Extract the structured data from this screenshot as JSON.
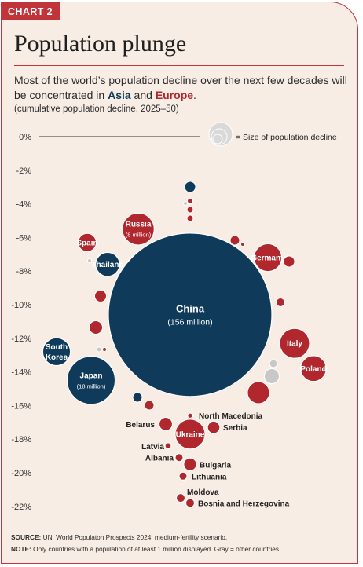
{
  "tag": "CHART 2",
  "title": "Population plunge",
  "subtitle": {
    "part1": "Most of the world’s population decline over the next few decades will be concentrated in ",
    "asia": "Asia",
    "and": " and ",
    "europe": "Europe",
    "end": "."
  },
  "unit_note": "(cumulative population decline, 2025–50)",
  "legend": {
    "label": "= Size of population decline"
  },
  "colors": {
    "asia": "#0f3a5a",
    "europe": "#b0282e",
    "other": "#c8c8c8",
    "accent": "#c0343a"
  },
  "chart_data": {
    "type": "scatter",
    "ylim": [
      -22.5,
      0
    ],
    "y_ticks": [
      {
        "value": 0,
        "label": "0%"
      },
      {
        "value": -2,
        "label": "-2%"
      },
      {
        "value": -4,
        "label": "-4%"
      },
      {
        "value": -6,
        "label": "-6%"
      },
      {
        "value": -8,
        "label": "-8%"
      },
      {
        "value": -10,
        "label": "-10%"
      },
      {
        "value": -12,
        "label": "-12%"
      },
      {
        "value": -14,
        "label": "-14%"
      },
      {
        "value": -16,
        "label": "-16%"
      },
      {
        "value": -18,
        "label": "-18%"
      },
      {
        "value": -20,
        "label": "-20%"
      },
      {
        "value": -22,
        "label": "-22%"
      }
    ],
    "points": [
      {
        "name": "China",
        "sub": "(156 million)",
        "region": "asia",
        "y": -10.6,
        "size": 156
      },
      {
        "name": "Japan",
        "sub": "(18 million)",
        "region": "asia",
        "y": -14.5,
        "size": 18
      },
      {
        "name": "Russia",
        "sub": "(8 million)",
        "region": "europe",
        "y": -5.5,
        "size": 8
      },
      {
        "name": "Thailand",
        "region": "asia",
        "y": -7.6,
        "size": 4.5
      },
      {
        "name": "South Korea",
        "region": "asia",
        "y": -12.8,
        "size": 6
      },
      {
        "name": "Spain",
        "region": "europe",
        "y": -6.3,
        "size": 2.6
      },
      {
        "name": "Germany",
        "region": "europe",
        "y": -7.2,
        "size": 6
      },
      {
        "name": "Italy",
        "region": "europe",
        "y": -12.3,
        "size": 7
      },
      {
        "name": "Poland",
        "region": "europe",
        "y": -13.8,
        "size": 5.2
      },
      {
        "name": "Ukraine",
        "region": "europe",
        "y": -17.7,
        "size": 7
      },
      {
        "name": "North Macedonia",
        "region": "europe",
        "y": -16.6,
        "size": 0.2
      },
      {
        "name": "Belarus",
        "region": "europe",
        "y": -17.1,
        "size": 1.4
      },
      {
        "name": "Serbia",
        "region": "europe",
        "y": -17.3,
        "size": 1.2
      },
      {
        "name": "Latvia",
        "region": "europe",
        "y": -18.4,
        "size": 0.3
      },
      {
        "name": "Albania",
        "region": "europe",
        "y": -19.1,
        "size": 0.5
      },
      {
        "name": "Bulgaria",
        "region": "europe",
        "y": -19.5,
        "size": 1.3
      },
      {
        "name": "Lithuania",
        "region": "europe",
        "y": -20.2,
        "size": 0.5
      },
      {
        "name": "Moldova",
        "region": "europe",
        "y": -21.5,
        "size": 0.6
      },
      {
        "name": "Bosnia and Herzegovina",
        "region": "europe",
        "y": -21.8,
        "size": 0.6
      }
    ]
  }
}
